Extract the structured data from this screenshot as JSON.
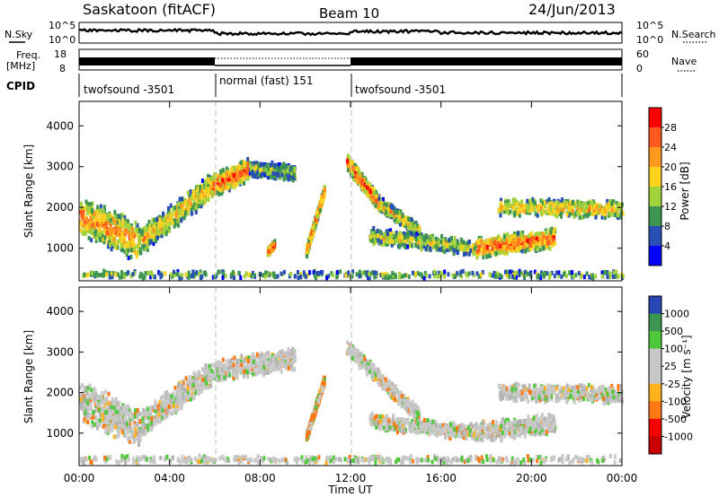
{
  "header": {
    "station": "Saskatoon (fitACF)",
    "beam": "Beam 10",
    "date": "24/Jun/2013"
  },
  "top_panels": {
    "nsky_label": "N.Sky",
    "nsearch_label": "N.Search",
    "noise_ticks": [
      "10^5",
      "10^0"
    ],
    "freq_label_1": "Freq.",
    "freq_label_2": "[MHz]",
    "freq_ticks": [
      "18",
      "8"
    ],
    "nave_label": "Nave",
    "nave_ticks": [
      "60",
      "0"
    ],
    "cpid_label": "CPID",
    "cpid_segments": [
      {
        "label": "twofsound -3501",
        "start_hour": 0,
        "end_hour": 6
      },
      {
        "label": "normal (fast) 151",
        "start_hour": 6,
        "end_hour": 12
      },
      {
        "label": "twofsound -3501",
        "start_hour": 12,
        "end_hour": 24
      }
    ]
  },
  "chart_data": [
    {
      "type": "heatmap",
      "panel": "power",
      "ylabel": "Slant Range [km]",
      "ylim": [
        200,
        4600
      ],
      "yticks": [
        1000,
        2000,
        3000,
        4000
      ],
      "xlim": [
        0,
        24
      ],
      "colorbar": {
        "label": "Power [dB]",
        "ticks": [
          "28",
          "24",
          "20",
          "16",
          "12",
          "8",
          "4"
        ],
        "colors": [
          "#ff0000",
          "#ff5a1e",
          "#ff9a1e",
          "#ffd21e",
          "#a0d23c",
          "#3c9650",
          "#2850b4",
          "#0000ff"
        ]
      },
      "scatter_bands": [
        {
          "t0": 0.0,
          "r0": 1800,
          "t1": 2.6,
          "r1": 1150,
          "width": 900,
          "intensity": 0.7
        },
        {
          "t0": 2.6,
          "r0": 1150,
          "t1": 5.8,
          "r1": 2500,
          "width": 600,
          "intensity": 0.6
        },
        {
          "t0": 5.8,
          "r0": 2500,
          "t1": 7.5,
          "r1": 2950,
          "width": 500,
          "intensity": 0.8
        },
        {
          "t0": 7.5,
          "r0": 2950,
          "t1": 9.5,
          "r1": 2850,
          "width": 350,
          "intensity": 0.4
        },
        {
          "t0": 10.0,
          "r0": 900,
          "t1": 10.8,
          "r1": 2400,
          "width": 220,
          "intensity": 0.8
        },
        {
          "t0": 11.8,
          "r0": 3100,
          "t1": 13.2,
          "r1": 2100,
          "width": 350,
          "intensity": 0.8
        },
        {
          "t0": 13.2,
          "r0": 2100,
          "t1": 15.0,
          "r1": 1400,
          "width": 300,
          "intensity": 0.6
        },
        {
          "t0": 12.8,
          "r0": 1300,
          "t1": 17.5,
          "r1": 1000,
          "width": 350,
          "intensity": 0.5
        },
        {
          "t0": 17.5,
          "r0": 1000,
          "t1": 21.0,
          "r1": 1250,
          "width": 450,
          "intensity": 0.8
        },
        {
          "t0": 18.5,
          "r0": 2000,
          "t1": 24.0,
          "r1": 1950,
          "width": 400,
          "intensity": 0.6
        },
        {
          "t0": 0.0,
          "r0": 350,
          "t1": 24.0,
          "r1": 350,
          "width": 160,
          "intensity": 0.4
        },
        {
          "t0": 8.3,
          "r0": 900,
          "t1": 8.6,
          "r1": 1100,
          "width": 150,
          "intensity": 0.9
        }
      ]
    },
    {
      "type": "heatmap",
      "panel": "velocity",
      "ylabel": "Slant Range [km]",
      "ylim": [
        200,
        4600
      ],
      "yticks": [
        1000,
        2000,
        3000,
        4000
      ],
      "xlim": [
        0,
        24
      ],
      "xticks": [
        "00:00",
        "04:00",
        "08:00",
        "12:00",
        "16:00",
        "20:00",
        "00:00"
      ],
      "xlabel": "Time UT",
      "colorbar": {
        "label": "Velocity [m s⁻¹]",
        "ticks": [
          "1000",
          "500",
          "100",
          "25",
          "-25",
          "-100",
          "-500",
          "-1000"
        ],
        "colors": [
          "#2846b4",
          "#3c9650",
          "#50c83c",
          "#c8c8c8",
          "#c8c8c8",
          "#ffb41e",
          "#ff7814",
          "#f50000",
          "#c80000"
        ]
      },
      "scatter_bands": [
        {
          "t0": 0.0,
          "r0": 1800,
          "t1": 2.6,
          "r1": 1150,
          "width": 900,
          "intensity": 0.5
        },
        {
          "t0": 2.6,
          "r0": 1150,
          "t1": 5.8,
          "r1": 2500,
          "width": 600,
          "intensity": 0.5
        },
        {
          "t0": 5.8,
          "r0": 2500,
          "t1": 9.5,
          "r1": 2850,
          "width": 500,
          "intensity": 0.5
        },
        {
          "t0": 10.0,
          "r0": 900,
          "t1": 10.8,
          "r1": 2300,
          "width": 220,
          "intensity": 0.9
        },
        {
          "t0": 11.8,
          "r0": 3100,
          "t1": 15.0,
          "r1": 1400,
          "width": 350,
          "intensity": 0.5
        },
        {
          "t0": 12.8,
          "r0": 1300,
          "t1": 17.5,
          "r1": 1000,
          "width": 350,
          "intensity": 0.5
        },
        {
          "t0": 17.5,
          "r0": 1000,
          "t1": 21.0,
          "r1": 1250,
          "width": 450,
          "intensity": 0.7
        },
        {
          "t0": 18.5,
          "r0": 2000,
          "t1": 24.0,
          "r1": 1950,
          "width": 400,
          "intensity": 0.5
        },
        {
          "t0": 0.0,
          "r0": 350,
          "t1": 24.0,
          "r1": 350,
          "width": 160,
          "intensity": 0.6
        }
      ]
    }
  ]
}
